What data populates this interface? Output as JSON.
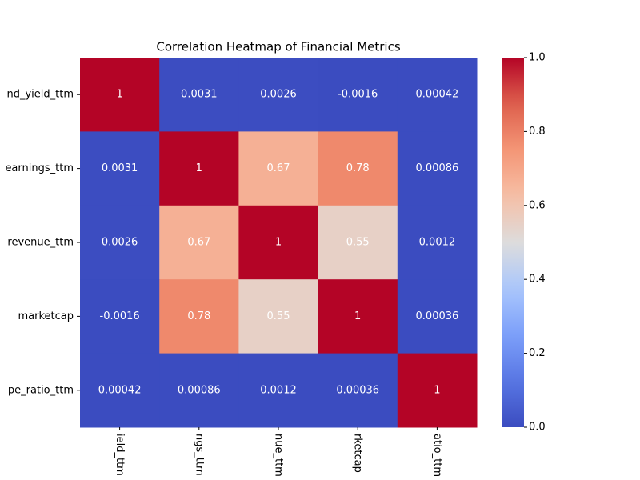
{
  "chart_data": {
    "type": "heatmap",
    "title": "Correlation Heatmap of Financial Metrics",
    "y_categories": [
      "nd_yield_ttm",
      "earnings_ttm",
      "revenue_ttm",
      "marketcap",
      "pe_ratio_ttm"
    ],
    "x_categories": [
      "ield_ttm",
      "ngs_ttm",
      "nue_ttm",
      "rketcap",
      "atio_ttm"
    ],
    "values": [
      [
        1,
        0.0031,
        0.0026,
        -0.0016,
        0.00042
      ],
      [
        0.0031,
        1,
        0.67,
        0.78,
        0.00086
      ],
      [
        0.0026,
        0.67,
        1,
        0.55,
        0.0012
      ],
      [
        -0.0016,
        0.78,
        0.55,
        1,
        0.00036
      ],
      [
        0.00042,
        0.00086,
        0.0012,
        0.00036,
        1
      ]
    ],
    "colormap": "coolwarm",
    "clim": [
      0,
      1
    ],
    "colorbar_ticks": [
      {
        "value": 0,
        "label": "0.0"
      },
      0.2,
      0.4,
      0.6,
      0.8,
      {
        "value": 1,
        "label": "1.0"
      }
    ],
    "annotation_color": "#ffffff"
  }
}
